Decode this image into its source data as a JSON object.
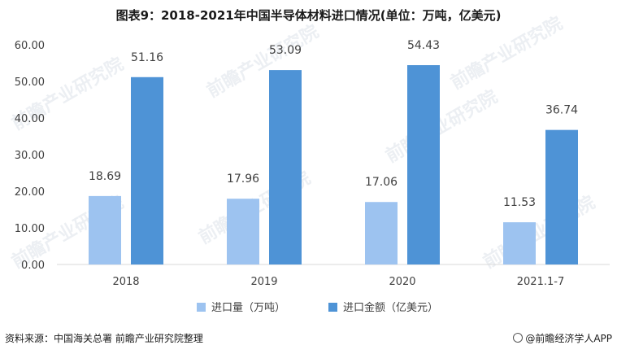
{
  "title": "图表9：2018-2021年中国半导体材料进口情况(单位：万吨，亿美元)",
  "source": "资料来源：中国海关总署 前瞻产业研究院整理",
  "brand": "@前瞻经济学人APP",
  "watermark": "前瞻产业研究院",
  "colors": {
    "series1": "#9dc3f0",
    "series2": "#4e93d6",
    "axis_text": "#404040",
    "grid": "#d9d9d9"
  },
  "chart_data": {
    "type": "bar",
    "title": "图表9：2018-2021年中国半导体材料进口情况(单位：万吨，亿美元)",
    "categories": [
      "2018",
      "2019",
      "2020",
      "2021.1-7"
    ],
    "series": [
      {
        "name": "进口量（万吨）",
        "values": [
          18.69,
          17.96,
          17.06,
          11.53
        ]
      },
      {
        "name": "进口金额（亿美元）",
        "values": [
          51.16,
          53.09,
          54.43,
          36.74
        ]
      }
    ],
    "yticks": [
      "0.00",
      "10.00",
      "20.00",
      "30.00",
      "40.00",
      "50.00",
      "60.00"
    ],
    "ylim": [
      0,
      60
    ],
    "legend": "bottom",
    "grid": false,
    "data_labels": true
  }
}
